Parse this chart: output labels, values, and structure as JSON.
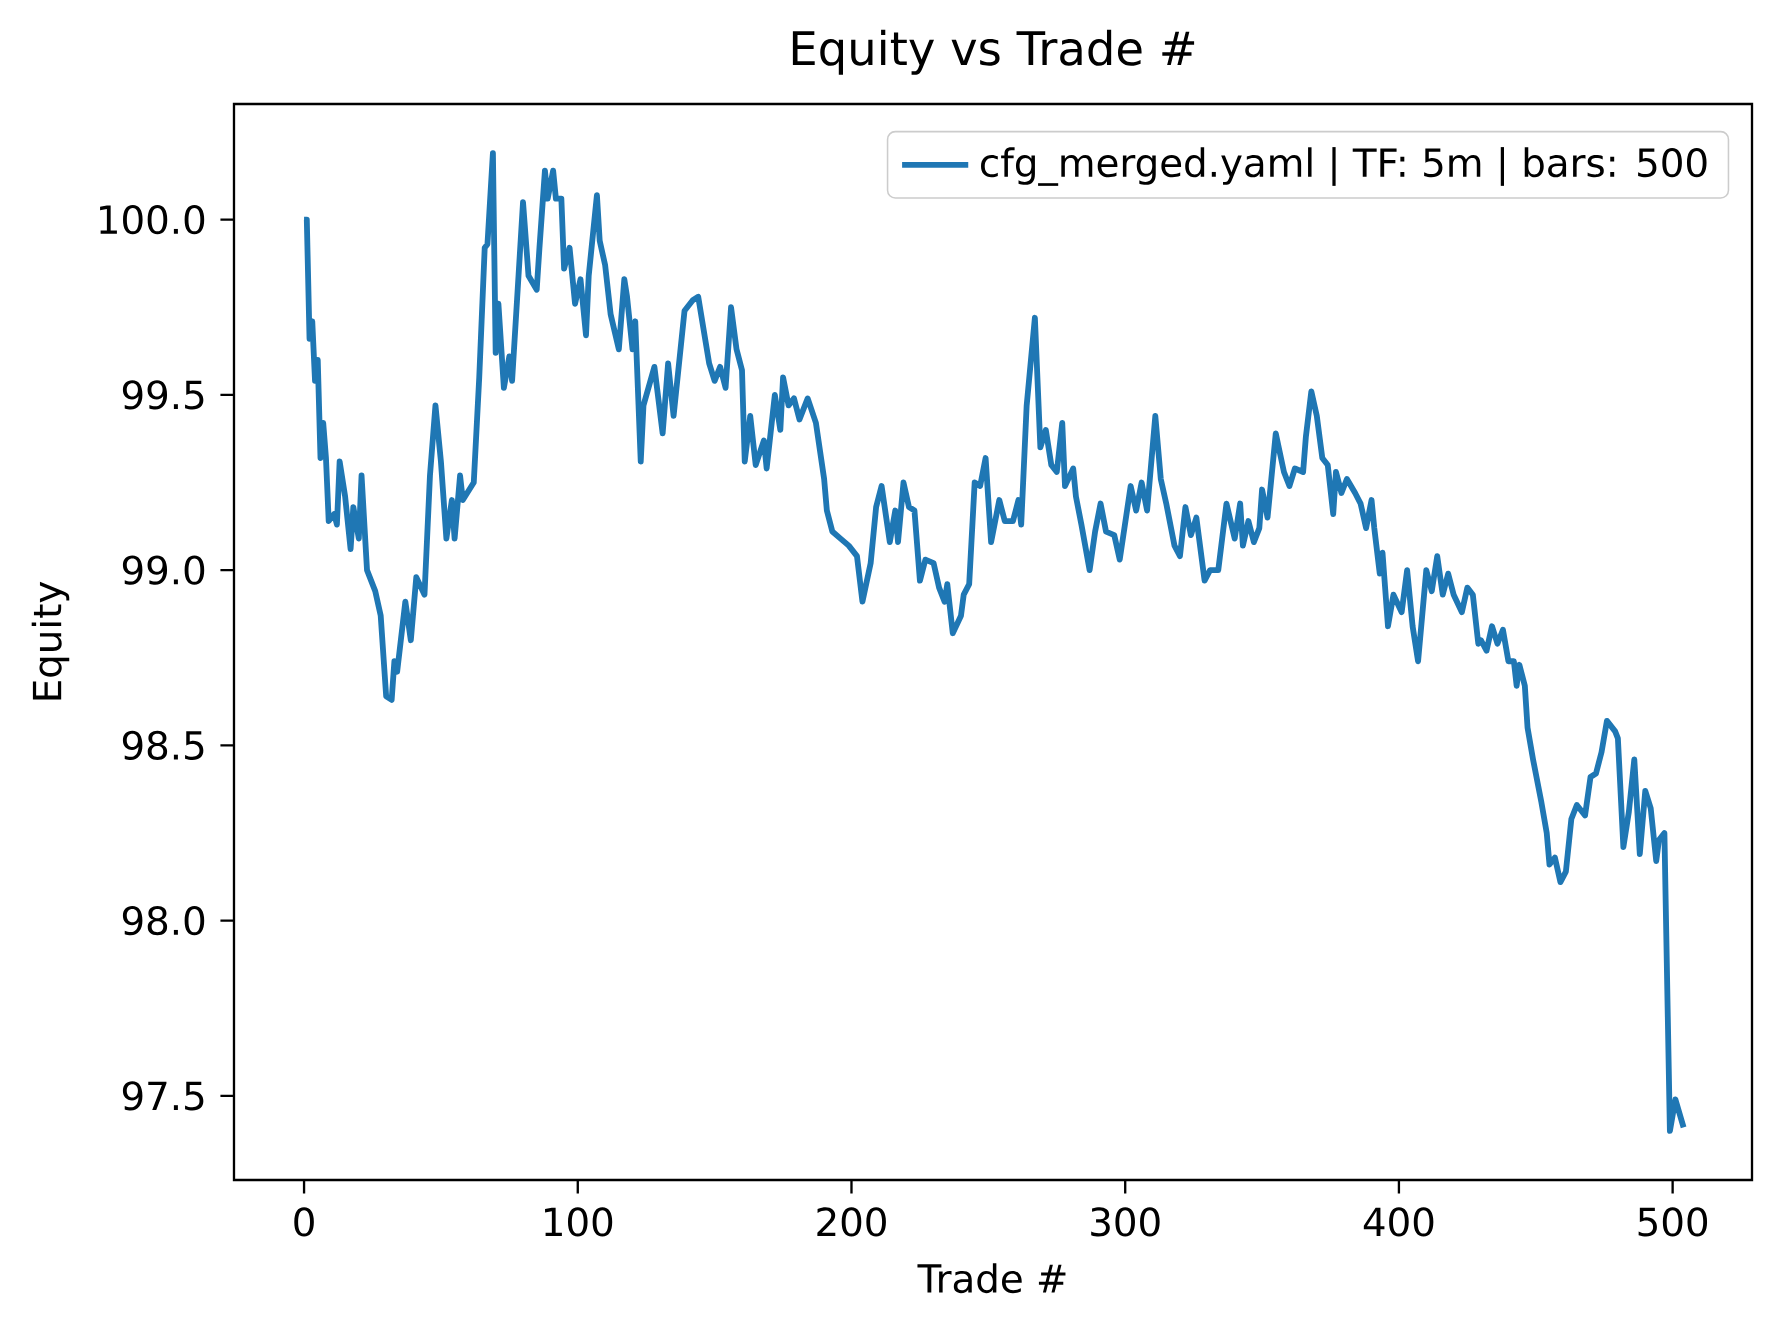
{
  "chart_data": {
    "type": "line",
    "title": "Equity vs Trade #",
    "xlabel": "Trade #",
    "ylabel": "Equity",
    "xlim": [
      -25.6,
      529
    ],
    "ylim": [
      97.26,
      100.33
    ],
    "xticks": [
      0,
      100,
      200,
      300,
      400,
      500
    ],
    "yticks": [
      {
        "value": 97.5,
        "label": "97.5"
      },
      {
        "value": 98.0,
        "label": "98.0"
      },
      {
        "value": 98.5,
        "label": "98.5"
      },
      {
        "value": 99.0,
        "label": "99.0"
      },
      {
        "value": 99.5,
        "label": "99.5"
      },
      {
        "value": 100.0,
        "label": "100.0"
      }
    ],
    "legend": "top right",
    "grid": false,
    "series": [
      {
        "name": "cfg_merged.yaml | TF: 5m | bars: 500",
        "color": "#1f77b4",
        "x": [
          0,
          1,
          2,
          3,
          4,
          5,
          6,
          7,
          8,
          9,
          11,
          12,
          13,
          15,
          17,
          18,
          20,
          21,
          23,
          24,
          26,
          28,
          30,
          32,
          33,
          34,
          37,
          39,
          41,
          44,
          46,
          48,
          50,
          52,
          54,
          55,
          57,
          58,
          62,
          64,
          66,
          67,
          69,
          70,
          71,
          73,
          75,
          76,
          80,
          82,
          85,
          86,
          88,
          89,
          91,
          92,
          94,
          95,
          97,
          99,
          101,
          103,
          104,
          107,
          108,
          110,
          112,
          115,
          117,
          118,
          120,
          121,
          123,
          124,
          128,
          131,
          133,
          135,
          139,
          142,
          144,
          148,
          150,
          152,
          154,
          156,
          158,
          160,
          161,
          163,
          165,
          168,
          169,
          172,
          174,
          175,
          177,
          179,
          181,
          184,
          187,
          190,
          191,
          193,
          196,
          199,
          202,
          204,
          207,
          209,
          211,
          214,
          216,
          217,
          219,
          221,
          223,
          225,
          227,
          230,
          232,
          234,
          235,
          237,
          240,
          241,
          243,
          245,
          247,
          249,
          251,
          254,
          256,
          259,
          261,
          262,
          264,
          267,
          269,
          271,
          273,
          275,
          277,
          278,
          281,
          282,
          284,
          287,
          289,
          291,
          293,
          296,
          298,
          302,
          304,
          306,
          308,
          311,
          313,
          315,
          318,
          320,
          322,
          324,
          326,
          329,
          331,
          334,
          337,
          340,
          342,
          343,
          345,
          347,
          349,
          350,
          352,
          355,
          358,
          360,
          362,
          365,
          366,
          368,
          370,
          372,
          374,
          376,
          377,
          379,
          381,
          384,
          386,
          388,
          390,
          391,
          393,
          394,
          396,
          398,
          401,
          403,
          405,
          407,
          410,
          412,
          414,
          416,
          418,
          420,
          423,
          425,
          427,
          429,
          430,
          432,
          434,
          436,
          438,
          440,
          442,
          443,
          444,
          446,
          447,
          449,
          452,
          454,
          455,
          457,
          459,
          461,
          463,
          465,
          468,
          470,
          472,
          474,
          476,
          479,
          480,
          482,
          484,
          486,
          488,
          490,
          492,
          494,
          495,
          497,
          499,
          501,
          504
        ],
        "values": [
          100.0,
          100.0,
          99.66,
          99.71,
          99.54,
          99.6,
          99.32,
          99.42,
          99.32,
          99.14,
          99.16,
          99.13,
          99.31,
          99.21,
          99.06,
          99.18,
          99.09,
          99.27,
          99.0,
          98.98,
          98.94,
          98.87,
          98.64,
          98.63,
          98.74,
          98.71,
          98.91,
          98.8,
          98.98,
          98.93,
          99.27,
          99.47,
          99.31,
          99.09,
          99.2,
          99.09,
          99.27,
          99.2,
          99.25,
          99.55,
          99.92,
          99.93,
          100.19,
          99.62,
          99.76,
          99.52,
          99.61,
          99.54,
          100.05,
          99.84,
          99.8,
          99.92,
          100.14,
          100.06,
          100.14,
          100.06,
          100.06,
          99.86,
          99.92,
          99.76,
          99.83,
          99.67,
          99.84,
          100.07,
          99.94,
          99.87,
          99.73,
          99.63,
          99.83,
          99.78,
          99.63,
          99.71,
          99.31,
          99.47,
          99.58,
          99.39,
          99.59,
          99.44,
          99.74,
          99.77,
          99.78,
          99.59,
          99.54,
          99.58,
          99.52,
          99.75,
          99.63,
          99.57,
          99.31,
          99.44,
          99.3,
          99.37,
          99.29,
          99.5,
          99.4,
          99.55,
          99.47,
          99.49,
          99.43,
          99.49,
          99.42,
          99.26,
          99.17,
          99.11,
          99.09,
          99.07,
          99.04,
          98.91,
          99.02,
          99.18,
          99.24,
          99.08,
          99.17,
          99.08,
          99.25,
          99.18,
          99.17,
          98.97,
          99.03,
          99.02,
          98.95,
          98.91,
          98.96,
          98.82,
          98.87,
          98.93,
          98.96,
          99.25,
          99.24,
          99.32,
          99.08,
          99.2,
          99.14,
          99.14,
          99.2,
          99.13,
          99.47,
          99.72,
          99.35,
          99.4,
          99.3,
          99.28,
          99.42,
          99.24,
          99.29,
          99.21,
          99.13,
          99.0,
          99.11,
          99.19,
          99.11,
          99.1,
          99.03,
          99.24,
          99.17,
          99.25,
          99.17,
          99.44,
          99.26,
          99.19,
          99.07,
          99.04,
          99.18,
          99.1,
          99.15,
          98.97,
          99.0,
          99.0,
          99.19,
          99.09,
          99.19,
          99.07,
          99.14,
          99.08,
          99.12,
          99.23,
          99.15,
          99.39,
          99.28,
          99.24,
          99.29,
          99.28,
          99.38,
          99.51,
          99.44,
          99.32,
          99.3,
          99.16,
          99.28,
          99.22,
          99.26,
          99.22,
          99.19,
          99.12,
          99.2,
          99.12,
          98.99,
          99.05,
          98.84,
          98.93,
          98.88,
          99.0,
          98.84,
          98.74,
          99.0,
          98.94,
          99.04,
          98.93,
          98.99,
          98.93,
          98.88,
          98.95,
          98.93,
          98.79,
          98.8,
          98.77,
          98.84,
          98.79,
          98.83,
          98.74,
          98.74,
          98.67,
          98.73,
          98.67,
          98.55,
          98.46,
          98.34,
          98.25,
          98.16,
          98.18,
          98.11,
          98.14,
          98.29,
          98.33,
          98.3,
          98.41,
          98.42,
          98.48,
          98.57,
          98.54,
          98.52,
          98.21,
          98.31,
          98.46,
          98.19,
          98.37,
          98.32,
          98.17,
          98.23,
          98.25,
          97.4,
          97.49,
          97.41
        ]
      }
    ]
  }
}
